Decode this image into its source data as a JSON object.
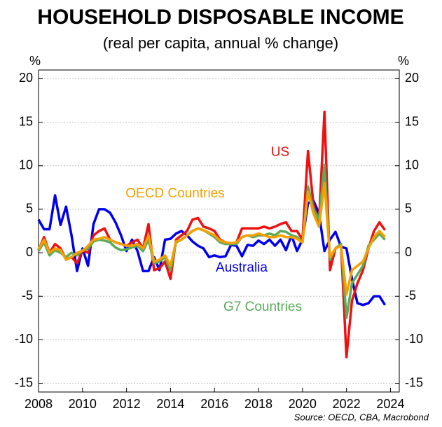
{
  "chart_data": {
    "type": "line",
    "title": "HOUSEHOLD DISPOSABLE INCOME",
    "subtitle": "(real per capita, annual % change)",
    "y_unit": "%",
    "source": "Source: OECD, CBA, Macrobond",
    "x": [
      2008,
      2008.25,
      2008.5,
      2008.75,
      2009,
      2009.25,
      2009.5,
      2009.75,
      2010,
      2010.25,
      2010.5,
      2010.75,
      2011,
      2011.25,
      2011.5,
      2011.75,
      2012,
      2012.25,
      2012.5,
      2012.75,
      2013,
      2013.25,
      2013.5,
      2013.75,
      2014,
      2014.25,
      2014.5,
      2014.75,
      2015,
      2015.25,
      2015.5,
      2015.75,
      2016,
      2016.25,
      2016.5,
      2016.75,
      2017,
      2017.25,
      2017.5,
      2017.75,
      2018,
      2018.25,
      2018.5,
      2018.75,
      2019,
      2019.25,
      2019.5,
      2019.75,
      2020,
      2020.25,
      2020.5,
      2020.75,
      2021,
      2021.25,
      2021.5,
      2021.75,
      2022,
      2022.25,
      2022.5,
      2022.75,
      2023,
      2023.25,
      2023.5,
      2023.75
    ],
    "series": [
      {
        "name": "Australia",
        "color": "#0000ee",
        "values": [
          3.8,
          2.7,
          2.7,
          6.6,
          3.2,
          5.3,
          2.0,
          -2.1,
          0.5,
          -1.5,
          3.3,
          5.0,
          5.0,
          4.6,
          3.5,
          2.0,
          0.2,
          1.5,
          0.2,
          -2.1,
          -2.1,
          -0.5,
          -2.0,
          1.5,
          1.6,
          2.2,
          2.5,
          2.0,
          1.3,
          0.8,
          0.5,
          -0.5,
          -0.3,
          -0.5,
          -0.4,
          0.9,
          0.8,
          -0.4,
          0.9,
          0.8,
          1.4,
          1.0,
          1.5,
          0.8,
          1.5,
          0.3,
          2.0,
          0.2,
          1.5,
          5.7,
          6.0,
          4.5,
          0.2,
          1.5,
          2.4,
          0.7,
          0.5,
          -3.0,
          -5.8,
          -6.0,
          -5.8,
          -5.0,
          -5.0,
          -6.0
        ]
      },
      {
        "name": "US",
        "color": "#ee1111",
        "values": [
          0.3,
          1.8,
          0.0,
          1.0,
          0.5,
          -0.8,
          -0.5,
          -1.2,
          0.3,
          0.0,
          2.0,
          2.5,
          2.8,
          1.5,
          1.2,
          1.0,
          0.8,
          1.2,
          1.5,
          0.5,
          3.3,
          -2.0,
          -1.8,
          -1.0,
          -3.0,
          1.5,
          2.0,
          2.5,
          3.8,
          4.0,
          3.0,
          2.8,
          2.5,
          1.5,
          1.2,
          1.0,
          1.2,
          2.8,
          2.8,
          2.8,
          2.8,
          3.0,
          2.8,
          3.0,
          3.3,
          3.5,
          2.5,
          2.5,
          1.5,
          11.7,
          5.5,
          3.5,
          16.2,
          -2.0,
          0.5,
          1.0,
          -12.0,
          -5.5,
          -3.5,
          -2.0,
          0.5,
          2.5,
          3.5,
          2.6
        ]
      },
      {
        "name": "G7 Countries",
        "color": "#5aaa5a",
        "values": [
          0.2,
          1.2,
          -0.3,
          0.3,
          0.0,
          -0.5,
          0.0,
          -0.3,
          0.3,
          0.5,
          1.3,
          1.5,
          1.4,
          1.2,
          0.6,
          0.3,
          0.4,
          0.6,
          0.8,
          0.2,
          1.5,
          -1.2,
          -1.0,
          -0.5,
          -2.0,
          1.2,
          1.5,
          2.0,
          2.5,
          2.8,
          2.6,
          2.2,
          1.8,
          1.2,
          1.0,
          1.0,
          1.0,
          1.8,
          2.0,
          1.8,
          2.0,
          2.0,
          2.2,
          2.0,
          2.5,
          2.4,
          2.0,
          1.8,
          1.2,
          7.6,
          5.0,
          3.8,
          10.1,
          -0.8,
          0.5,
          1.0,
          -7.5,
          -3.5,
          -2.5,
          -1.5,
          0.8,
          1.5,
          2.2,
          1.5
        ]
      },
      {
        "name": "OECD Countries",
        "color": "#f5a000",
        "values": [
          0.4,
          1.5,
          0.0,
          0.5,
          0.3,
          -0.8,
          -0.5,
          0.0,
          0.2,
          0.8,
          1.5,
          1.6,
          1.8,
          1.5,
          1.2,
          1.0,
          0.8,
          0.8,
          1.0,
          0.5,
          2.0,
          -1.0,
          -0.8,
          -0.3,
          -1.5,
          1.3,
          1.5,
          2.0,
          2.5,
          2.8,
          2.6,
          2.3,
          2.0,
          1.4,
          1.2,
          1.1,
          1.2,
          1.8,
          2.0,
          2.0,
          2.2,
          2.0,
          1.8,
          1.8,
          2.0,
          1.8,
          1.8,
          1.6,
          1.2,
          7.0,
          4.5,
          3.0,
          8.0,
          -0.5,
          0.5,
          0.8,
          -4.8,
          -2.0,
          -1.5,
          -1.0,
          0.5,
          1.8,
          2.5,
          1.8
        ]
      }
    ],
    "xlim": [
      2008,
      2024.4
    ],
    "xticks": [
      2008,
      2010,
      2012,
      2014,
      2016,
      2018,
      2020,
      2022,
      2024
    ],
    "ylim": [
      -16,
      21
    ],
    "yticks": [
      -15,
      -10,
      -5,
      0,
      5,
      10,
      15,
      20
    ],
    "grid": true
  }
}
